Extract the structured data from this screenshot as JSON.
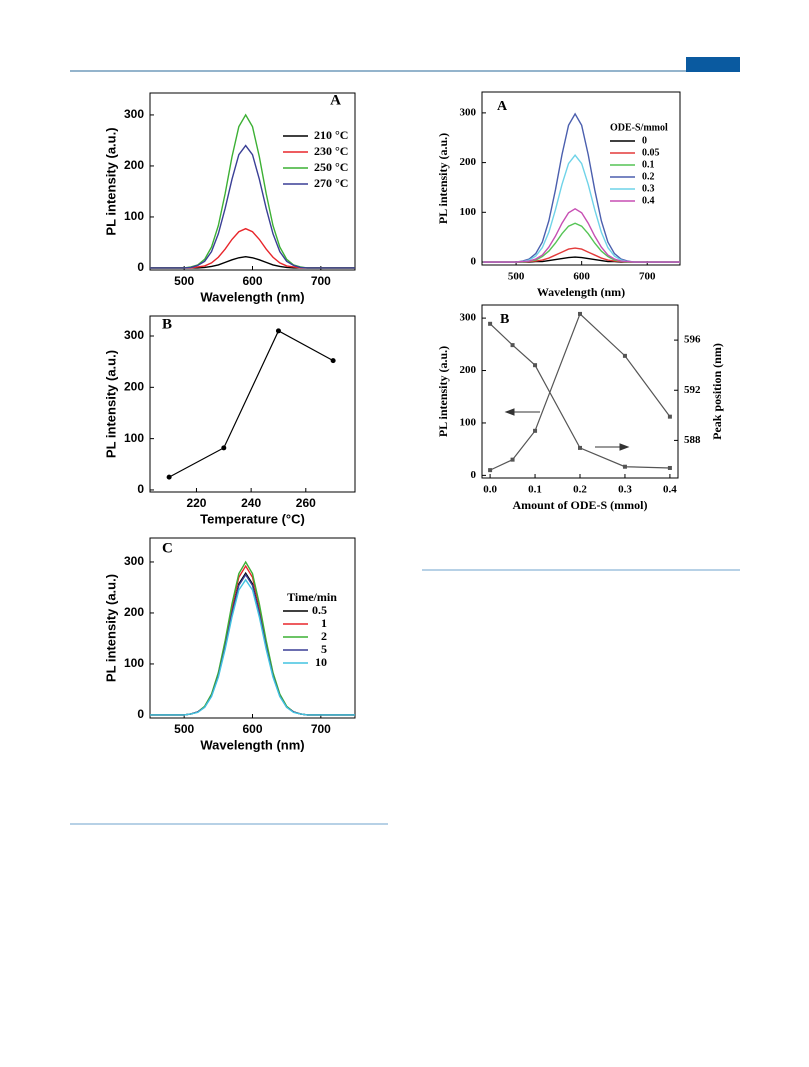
{
  "chart_data": [
    {
      "type": "line",
      "panel": "A",
      "xlabel": "Wavelength (nm)",
      "ylabel": "PL intensity (a.u.)",
      "x": [
        450,
        460,
        470,
        480,
        490,
        500,
        510,
        520,
        530,
        540,
        550,
        560,
        570,
        580,
        590,
        600,
        610,
        620,
        630,
        640,
        650,
        660,
        670,
        680,
        690,
        700,
        710,
        720,
        730,
        740,
        750
      ],
      "series": [
        {
          "name": "210 °C",
          "color": "#000000",
          "values": [
            0,
            0,
            0,
            0,
            0,
            0,
            0,
            0,
            1,
            3,
            6,
            11,
            16,
            20,
            22,
            20,
            16,
            11,
            6,
            3,
            1,
            0,
            0,
            0,
            0,
            0,
            0,
            0,
            0,
            0,
            0
          ]
        },
        {
          "name": "230 °C",
          "color": "#e8262b",
          "values": [
            0,
            0,
            0,
            0,
            0,
            0,
            0,
            2,
            4,
            10,
            21,
            37,
            56,
            71,
            77,
            71,
            56,
            37,
            21,
            10,
            4,
            2,
            0,
            0,
            0,
            0,
            0,
            0,
            0,
            0,
            0
          ]
        },
        {
          "name": "250 °C",
          "color": "#3cb034",
          "values": [
            0,
            0,
            0,
            0,
            0,
            0,
            2,
            6,
            17,
            41,
            83,
            146,
            218,
            277,
            300,
            277,
            218,
            146,
            83,
            41,
            17,
            6,
            2,
            0,
            0,
            0,
            0,
            0,
            0,
            0,
            0
          ]
        },
        {
          "name": "270 °C",
          "color": "#3a3f96",
          "values": [
            0,
            0,
            0,
            0,
            0,
            0,
            1,
            5,
            13,
            32,
            67,
            117,
            174,
            222,
            240,
            222,
            174,
            117,
            67,
            32,
            13,
            5,
            1,
            0,
            0,
            0,
            0,
            0,
            0,
            0,
            0
          ]
        }
      ],
      "xlim": [
        450,
        750
      ],
      "xticks": [
        500,
        600,
        700
      ],
      "ylim": [
        -4,
        343
      ],
      "yticks": [
        0,
        100,
        200,
        300
      ],
      "legend": "upper right"
    },
    {
      "type": "line",
      "panel": "B",
      "xlabel": "Temperature (°C)",
      "ylabel": "PL intensity (a.u.)",
      "markers": "circle",
      "x": [
        210,
        230,
        250,
        270
      ],
      "series": [
        {
          "color": "#000000",
          "values": [
            25,
            82,
            310,
            252
          ]
        }
      ],
      "xlim": [
        203,
        278
      ],
      "xticks": [
        220,
        240,
        260
      ],
      "ylim": [
        -4,
        339
      ],
      "yticks": [
        0,
        100,
        200,
        300
      ]
    },
    {
      "type": "line",
      "panel": "C",
      "xlabel": "Wavelength (nm)",
      "ylabel": "PL intensity (a.u.)",
      "legend_title": "Time/min",
      "x": [
        450,
        460,
        470,
        480,
        490,
        500,
        510,
        520,
        530,
        540,
        550,
        560,
        570,
        580,
        590,
        600,
        610,
        620,
        630,
        640,
        650,
        660,
        670,
        680,
        690,
        700,
        710,
        720,
        730,
        740,
        750
      ],
      "series": [
        {
          "name": "0.5",
          "color": "#000000",
          "values": [
            0,
            0,
            0,
            0,
            0,
            0,
            2,
            6,
            16,
            38,
            77,
            135,
            202,
            257,
            278,
            257,
            202,
            135,
            77,
            38,
            16,
            6,
            2,
            0,
            0,
            0,
            0,
            0,
            0,
            0,
            0
          ]
        },
        {
          "name": "1",
          "color": "#e8262b",
          "values": [
            0,
            0,
            0,
            0,
            0,
            0,
            2,
            6,
            16,
            39,
            81,
            142,
            212,
            270,
            292,
            270,
            212,
            142,
            81,
            39,
            16,
            6,
            2,
            0,
            0,
            0,
            0,
            0,
            0,
            0,
            0
          ]
        },
        {
          "name": "2",
          "color": "#3cb034",
          "values": [
            0,
            0,
            0,
            0,
            0,
            0,
            2,
            6,
            17,
            41,
            83,
            146,
            218,
            277,
            300,
            277,
            218,
            146,
            83,
            41,
            17,
            6,
            2,
            0,
            0,
            0,
            0,
            0,
            0,
            0,
            0
          ]
        },
        {
          "name": "5",
          "color": "#3a3f96",
          "values": [
            0,
            0,
            0,
            0,
            0,
            0,
            2,
            6,
            15,
            37,
            76,
            134,
            200,
            254,
            275,
            254,
            200,
            134,
            76,
            37,
            15,
            6,
            2,
            0,
            0,
            0,
            0,
            0,
            0,
            0,
            0
          ]
        },
        {
          "name": "10",
          "color": "#42c3e0",
          "values": [
            0,
            0,
            0,
            0,
            0,
            0,
            2,
            5,
            15,
            36,
            74,
            129,
            192,
            245,
            265,
            245,
            192,
            129,
            74,
            36,
            15,
            5,
            2,
            0,
            0,
            0,
            0,
            0,
            0,
            0,
            0
          ]
        }
      ],
      "xlim": [
        450,
        750
      ],
      "xticks": [
        500,
        600,
        700
      ],
      "ylim": [
        -6,
        347
      ],
      "yticks": [
        0,
        100,
        200,
        300
      ],
      "legend": "upper right"
    },
    {
      "type": "line",
      "panel": "A",
      "xlabel": "Wavelength (nm)",
      "ylabel": "PL intensity (a.u.)",
      "legend_title": "ODE-S/mmol",
      "x": [
        450,
        460,
        470,
        480,
        490,
        500,
        510,
        520,
        530,
        540,
        550,
        560,
        570,
        580,
        590,
        600,
        610,
        620,
        630,
        640,
        650,
        660,
        670,
        680,
        690,
        700,
        710,
        720,
        730,
        740,
        750
      ],
      "series": [
        {
          "name": "0",
          "color": "#000000",
          "values": [
            0,
            0,
            0,
            0,
            0,
            0,
            0,
            0,
            1,
            1,
            3,
            5,
            7,
            9,
            10,
            9,
            7,
            5,
            3,
            1,
            1,
            0,
            0,
            0,
            0,
            0,
            0,
            0,
            0,
            0,
            0
          ]
        },
        {
          "name": "0.05",
          "color": "#e33a3a",
          "values": [
            0,
            0,
            0,
            0,
            0,
            0,
            0,
            1,
            2,
            4,
            8,
            14,
            20,
            26,
            28,
            26,
            20,
            14,
            8,
            4,
            2,
            1,
            0,
            0,
            0,
            0,
            0,
            0,
            0,
            0,
            0
          ]
        },
        {
          "name": "0.1",
          "color": "#55c455",
          "values": [
            0,
            0,
            0,
            0,
            0,
            0,
            0,
            2,
            4,
            11,
            22,
            38,
            57,
            72,
            78,
            72,
            57,
            38,
            22,
            11,
            4,
            2,
            0,
            0,
            0,
            0,
            0,
            0,
            0,
            0,
            0
          ]
        },
        {
          "name": "0.2",
          "color": "#4b5fae",
          "values": [
            0,
            0,
            0,
            0,
            0,
            0,
            2,
            6,
            17,
            40,
            83,
            145,
            216,
            275,
            298,
            275,
            216,
            145,
            83,
            40,
            17,
            6,
            2,
            0,
            0,
            0,
            0,
            0,
            0,
            0,
            0
          ]
        },
        {
          "name": "0.3",
          "color": "#6fd3e8",
          "values": [
            0,
            0,
            0,
            0,
            0,
            0,
            1,
            4,
            12,
            29,
            60,
            105,
            156,
            198,
            215,
            198,
            156,
            105,
            60,
            29,
            12,
            4,
            1,
            0,
            0,
            0,
            0,
            0,
            0,
            0,
            0
          ]
        },
        {
          "name": "0.4",
          "color": "#c74fb3",
          "values": [
            0,
            0,
            0,
            0,
            0,
            0,
            1,
            2,
            6,
            14,
            30,
            52,
            78,
            99,
            107,
            99,
            78,
            52,
            30,
            14,
            6,
            2,
            1,
            0,
            0,
            0,
            0,
            0,
            0,
            0,
            0
          ]
        }
      ],
      "xlim": [
        448,
        750
      ],
      "xticks": [
        500,
        600,
        700
      ],
      "ylim": [
        -6,
        342
      ],
      "yticks": [
        0,
        100,
        200,
        300
      ],
      "legend": "upper right"
    },
    {
      "type": "line",
      "panel": "B",
      "xlabel": "Amount of ODE-S (mmol)",
      "ylabel": "PL intensity (a.u.)",
      "y2label": "Peak position (nm)",
      "markers": "square",
      "x": [
        0,
        0.05,
        0.1,
        0.2,
        0.3,
        0.4
      ],
      "series": [
        {
          "color": "#555555",
          "values": [
            10,
            30,
            85,
            308,
            228,
            112
          ]
        },
        {
          "color": "#555555",
          "axis": "y2",
          "values": [
            597.3,
            595.6,
            594.0,
            587.4,
            585.9,
            585.8
          ]
        }
      ],
      "xlim": [
        -0.018,
        0.418
      ],
      "xticks": [
        {
          "value": 0,
          "label": "0.0"
        },
        0.1,
        0.2,
        0.3,
        0.4
      ],
      "ylim": [
        -5,
        325
      ],
      "yticks": [
        0,
        100,
        200,
        300
      ],
      "y2lim": [
        585,
        598.8
      ],
      "y2ticks": [
        588,
        592,
        596
      ]
    }
  ]
}
